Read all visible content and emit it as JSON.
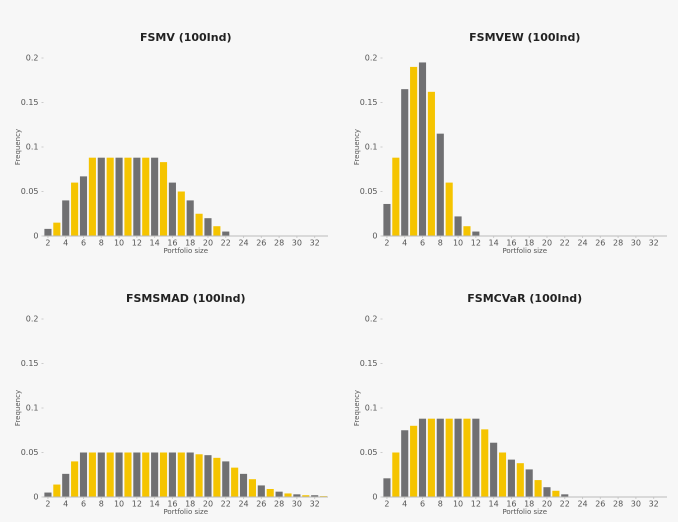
{
  "chart_data": [
    {
      "type": "bar",
      "title": "FSMV (100Ind)",
      "xlabel": "Portfolio size",
      "ylabel": "Frequency",
      "x": [
        2,
        3,
        4,
        5,
        6,
        7,
        8,
        9,
        10,
        11,
        12,
        13,
        14,
        15,
        16,
        17,
        18,
        19,
        20,
        21,
        22,
        23,
        24,
        25,
        26,
        27,
        28,
        29,
        30,
        31,
        32,
        33
      ],
      "values": [
        0.008,
        0.015,
        0.04,
        0.06,
        0.067,
        0.088,
        0.088,
        0.088,
        0.088,
        0.088,
        0.088,
        0.088,
        0.088,
        0.083,
        0.06,
        0.05,
        0.04,
        0.025,
        0.02,
        0.011,
        0.005,
        0,
        0,
        0,
        0,
        0,
        0,
        0,
        0,
        0,
        0,
        0
      ],
      "colors": [
        "#707072",
        "#f5c400"
      ],
      "xlim": [
        1.5,
        33.5
      ],
      "ylim": [
        0,
        0.2
      ],
      "xticks": [
        2,
        4,
        6,
        8,
        10,
        12,
        14,
        16,
        18,
        20,
        22,
        24,
        26,
        28,
        30,
        32
      ],
      "yticks": [
        0,
        0.05,
        0.1,
        0.15,
        0.2
      ]
    },
    {
      "type": "bar",
      "title": "FSMVEW (100Ind)",
      "xlabel": "Portfolio size",
      "ylabel": "Frequency",
      "x": [
        2,
        3,
        4,
        5,
        6,
        7,
        8,
        9,
        10,
        11,
        12,
        13,
        14,
        15,
        16,
        17,
        18,
        19,
        20,
        21,
        22,
        23,
        24,
        25,
        26,
        27,
        28,
        29,
        30,
        31,
        32,
        33
      ],
      "values": [
        0.036,
        0.088,
        0.165,
        0.19,
        0.195,
        0.162,
        0.115,
        0.06,
        0.022,
        0.011,
        0.005,
        0,
        0,
        0,
        0,
        0,
        0,
        0,
        0,
        0,
        0,
        0,
        0,
        0,
        0,
        0,
        0,
        0,
        0,
        0,
        0,
        0
      ],
      "colors": [
        "#707072",
        "#f5c400"
      ],
      "xlim": [
        1.5,
        33.5
      ],
      "ylim": [
        0,
        0.2
      ],
      "xticks": [
        2,
        4,
        6,
        8,
        10,
        12,
        14,
        16,
        18,
        20,
        22,
        24,
        26,
        28,
        30,
        32
      ],
      "yticks": [
        0,
        0.05,
        0.1,
        0.15,
        0.2
      ]
    },
    {
      "type": "bar",
      "title": "FSMSMAD (100Ind)",
      "xlabel": "Portfolio size",
      "ylabel": "Frequency",
      "x": [
        2,
        3,
        4,
        5,
        6,
        7,
        8,
        9,
        10,
        11,
        12,
        13,
        14,
        15,
        16,
        17,
        18,
        19,
        20,
        21,
        22,
        23,
        24,
        25,
        26,
        27,
        28,
        29,
        30,
        31,
        32,
        33
      ],
      "values": [
        0.005,
        0.014,
        0.026,
        0.04,
        0.05,
        0.05,
        0.05,
        0.05,
        0.05,
        0.05,
        0.05,
        0.05,
        0.05,
        0.05,
        0.05,
        0.05,
        0.05,
        0.048,
        0.047,
        0.044,
        0.04,
        0.033,
        0.026,
        0.02,
        0.013,
        0.009,
        0.006,
        0.004,
        0.003,
        0.002,
        0.002,
        0.001
      ],
      "colors": [
        "#707072",
        "#f5c400"
      ],
      "xlim": [
        1.5,
        33.5
      ],
      "ylim": [
        0,
        0.2
      ],
      "xticks": [
        2,
        4,
        6,
        8,
        10,
        12,
        14,
        16,
        18,
        20,
        22,
        24,
        26,
        28,
        30,
        32
      ],
      "yticks": [
        0,
        0.05,
        0.1,
        0.15,
        0.2
      ]
    },
    {
      "type": "bar",
      "title": "FSMCVaR (100Ind)",
      "xlabel": "Portfolio size",
      "ylabel": "Frequency",
      "x": [
        2,
        3,
        4,
        5,
        6,
        7,
        8,
        9,
        10,
        11,
        12,
        13,
        14,
        15,
        16,
        17,
        18,
        19,
        20,
        21,
        22,
        23,
        24,
        25,
        26,
        27,
        28,
        29,
        30,
        31,
        32,
        33
      ],
      "values": [
        0.021,
        0.05,
        0.075,
        0.08,
        0.088,
        0.088,
        0.088,
        0.088,
        0.088,
        0.088,
        0.088,
        0.076,
        0.061,
        0.05,
        0.042,
        0.038,
        0.031,
        0.019,
        0.011,
        0.007,
        0.003,
        0,
        0,
        0,
        0,
        0,
        0,
        0,
        0,
        0,
        0,
        0
      ],
      "colors": [
        "#707072",
        "#f5c400"
      ],
      "xlim": [
        1.5,
        33.5
      ],
      "ylim": [
        0,
        0.2
      ],
      "xticks": [
        2,
        4,
        6,
        8,
        10,
        12,
        14,
        16,
        18,
        20,
        22,
        24,
        26,
        28,
        30,
        32
      ],
      "yticks": [
        0,
        0.05,
        0.1,
        0.15,
        0.2
      ]
    }
  ]
}
